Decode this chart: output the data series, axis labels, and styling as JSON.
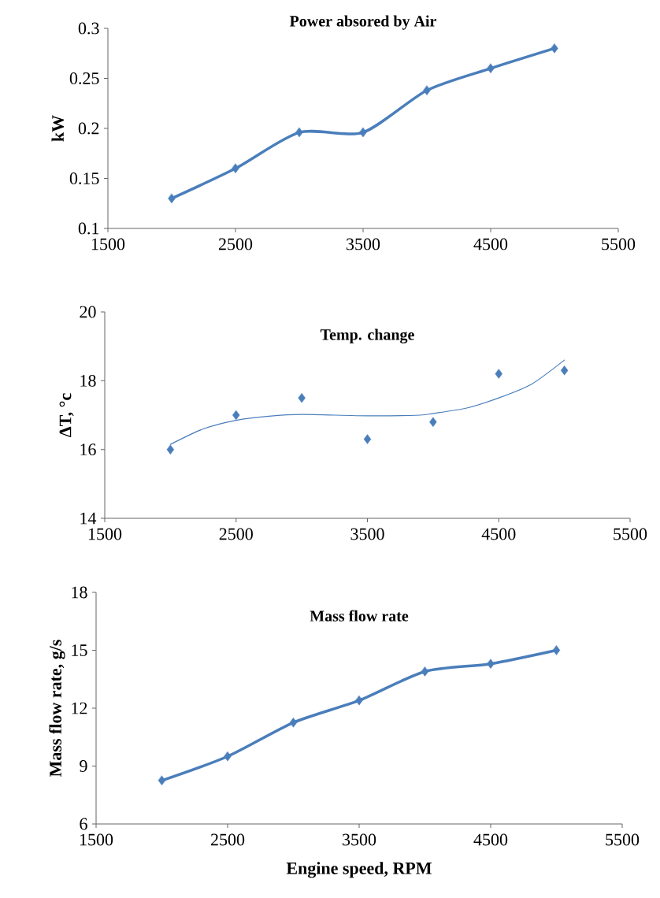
{
  "chart_data": [
    {
      "type": "line",
      "title": "Power absored by Air",
      "ylabel": "kW",
      "x": [
        2000,
        2500,
        3000,
        3500,
        4000,
        4500,
        5000
      ],
      "xlim": [
        1500,
        5500
      ],
      "xticks": [
        1500,
        2500,
        3500,
        4500,
        5500
      ],
      "ylim": [
        0.1,
        0.3
      ],
      "yticks": [
        0.1,
        0.15,
        0.2,
        0.25,
        0.3
      ],
      "marker": "diamond",
      "line_style": "solid",
      "series": [
        {
          "color": "#4a7ebb",
          "values": [
            0.13,
            0.16,
            0.196,
            0.196,
            0.238,
            0.26,
            0.28
          ]
        }
      ]
    },
    {
      "type": "scatter",
      "title": "Temp. change",
      "ylabel": "ΔT, °c",
      "x": [
        2000,
        2500,
        3000,
        3500,
        4000,
        4500,
        5000
      ],
      "xlim": [
        1500,
        5500
      ],
      "xticks": [
        1500,
        2500,
        3500,
        4500,
        5500
      ],
      "ylim": [
        14,
        20
      ],
      "yticks": [
        14,
        16,
        18,
        20
      ],
      "marker": "diamond",
      "series": [
        {
          "color": "#4a7ebb",
          "values": [
            16.0,
            17.0,
            17.5,
            16.3,
            16.8,
            18.2,
            18.3
          ]
        },
        {
          "type": "line",
          "color": "#4a7ebb",
          "marker": "none",
          "line_style": "solid",
          "x": [
            2000,
            2250,
            2500,
            2750,
            3000,
            3500,
            3900,
            4000,
            4250,
            4500,
            4750,
            5000
          ],
          "values": [
            16.15,
            16.6,
            16.85,
            16.97,
            17.02,
            16.98,
            17.0,
            17.05,
            17.2,
            17.5,
            17.9,
            18.6
          ]
        }
      ]
    },
    {
      "type": "line",
      "title": "Mass flow rate",
      "ylabel": "Mass flow rate, g/s",
      "xlabel": "Engine speed, RPM",
      "x": [
        2000,
        2500,
        3000,
        3500,
        4000,
        4500,
        5000
      ],
      "xlim": [
        1500,
        5500
      ],
      "xticks": [
        1500,
        2500,
        3500,
        4500,
        5500
      ],
      "ylim": [
        6,
        18
      ],
      "yticks": [
        6,
        9,
        12,
        15,
        18
      ],
      "marker": "diamond",
      "line_style": "solid",
      "series": [
        {
          "color": "#4a7ebb",
          "values": [
            8.25,
            9.5,
            11.25,
            12.4,
            13.9,
            14.3,
            15.0
          ]
        }
      ]
    }
  ]
}
